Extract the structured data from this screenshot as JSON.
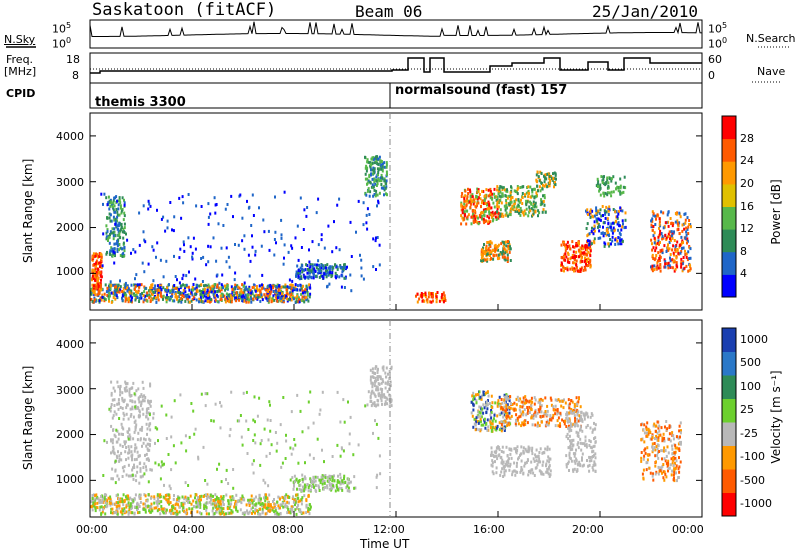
{
  "header": {
    "station": "Saskatoon (fitACF)",
    "beam": "Beam 06",
    "date": "25/Jan/2010"
  },
  "noise_panel": {
    "left_label": "N.Sky",
    "right_label": "N.Search",
    "left_ticks": [
      "10^5",
      "10^0"
    ],
    "right_ticks": [
      "10^5",
      "10^0"
    ]
  },
  "freq_panel": {
    "left_label_1": "Freq.",
    "left_label_2": "[MHz]",
    "right_label": "Nave",
    "left_ticks": [
      "18",
      "8"
    ],
    "right_ticks": [
      "60",
      "0"
    ]
  },
  "cpid": {
    "label": "CPID",
    "mode_1": "themis 3300",
    "mode_2": "normalsound (fast) 157"
  },
  "colors": {
    "scale": [
      "#0000ff",
      "#1f66c8",
      "#2e8b57",
      "#57b84a",
      "#b8b8b8",
      "#ff9900",
      "#ff5a00",
      "#ff0000"
    ]
  },
  "chart_data": [
    {
      "type": "heatmap",
      "name": "power",
      "ylabel": "Slant Range [km]",
      "yticks": [
        "1000",
        "2000",
        "3000",
        "4000"
      ],
      "ylim": [
        200,
        4500
      ],
      "xlim": [
        0,
        24
      ],
      "colorbar_label": "Power [dB]",
      "colorbar_ticks": [
        "4",
        "8",
        "12",
        "16",
        "20",
        "24",
        "28"
      ],
      "colorbar_colors": [
        "#0000ff",
        "#1f66c8",
        "#2e8b57",
        "#57b84a",
        "#e0c000",
        "#ff9900",
        "#ff5a00",
        "#ff0000"
      ]
    },
    {
      "type": "heatmap",
      "name": "velocity",
      "ylabel": "Slant Range [km]",
      "yticks": [
        "1000",
        "2000",
        "3000",
        "4000"
      ],
      "ylim": [
        200,
        4500
      ],
      "xlim": [
        0,
        24
      ],
      "colorbar_label": "Velocity [m s⁻¹]",
      "colorbar_ticks": [
        "1000",
        "500",
        "100",
        "25",
        "-25",
        "-100",
        "-500",
        "-1000"
      ],
      "colorbar_colors": [
        "#1a3fb0",
        "#2a78c8",
        "#2e8b57",
        "#6ccf2e",
        "#b8b8b8",
        "#ff9900",
        "#ff5a00",
        "#ff0000"
      ]
    }
  ],
  "xaxis": {
    "ticks": [
      "00:00",
      "04:00",
      "08:00",
      "12:00",
      "16:00",
      "20:00",
      "00:00"
    ],
    "label": "Time UT"
  }
}
